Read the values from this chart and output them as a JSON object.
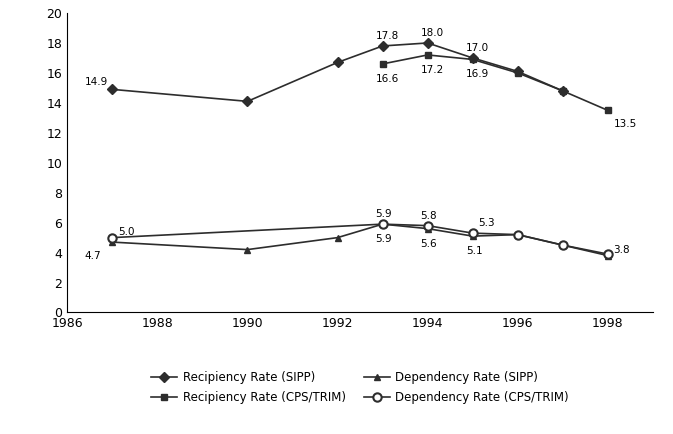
{
  "years": [
    1987,
    1990,
    1992,
    1993,
    1994,
    1995,
    1996,
    1997,
    1998
  ],
  "recipiency_sipp": [
    14.9,
    14.1,
    16.7,
    17.8,
    18.0,
    17.0,
    16.1,
    14.8,
    null
  ],
  "recipiency_cps": [
    null,
    null,
    null,
    16.6,
    17.2,
    16.9,
    16.0,
    14.8,
    13.5
  ],
  "dependency_sipp": [
    4.7,
    4.2,
    5.0,
    5.9,
    5.6,
    5.1,
    5.2,
    4.5,
    3.8
  ],
  "dependency_cps": [
    5.0,
    null,
    null,
    5.9,
    5.8,
    5.3,
    5.2,
    4.5,
    3.9
  ],
  "xlim": [
    1986,
    1999
  ],
  "ylim": [
    0,
    20
  ],
  "xticks": [
    1986,
    1988,
    1990,
    1992,
    1994,
    1996,
    1998
  ],
  "yticks": [
    0,
    2,
    4,
    6,
    8,
    10,
    12,
    14,
    16,
    18,
    20
  ],
  "legend_labels": [
    "Recipiency Rate (SIPP)",
    "Recipiency Rate (CPS/TRIM)",
    "Dependency Rate (SIPP)",
    "Dependency Rate (CPS/TRIM)"
  ],
  "line_color": "#2d2d2d",
  "background_color": "#ffffff",
  "annot_rsipp": {
    "1987": [
      14.9,
      -20,
      3
    ],
    "1993": [
      17.8,
      -5,
      5
    ],
    "1994": [
      18.0,
      -5,
      5
    ],
    "1995": [
      17.0,
      -5,
      5
    ]
  },
  "annot_rcps": {
    "1993": [
      16.6,
      -5,
      -13
    ],
    "1994": [
      17.2,
      -5,
      -13
    ],
    "1995": [
      16.9,
      -5,
      -13
    ],
    "1998": [
      13.5,
      4,
      -12
    ]
  },
  "annot_dsipp": {
    "1987": [
      4.7,
      -20,
      -12
    ],
    "1993": [
      5.9,
      -5,
      -13
    ],
    "1994": [
      5.6,
      -5,
      -13
    ],
    "1995": [
      5.1,
      -5,
      -13
    ],
    "1998": [
      3.8,
      4,
      2
    ]
  },
  "annot_dcps": {
    "1987": [
      5.0,
      4,
      2
    ],
    "1993": [
      5.9,
      -5,
      5
    ],
    "1994": [
      5.8,
      -5,
      5
    ],
    "1995": [
      5.3,
      4,
      5
    ]
  }
}
